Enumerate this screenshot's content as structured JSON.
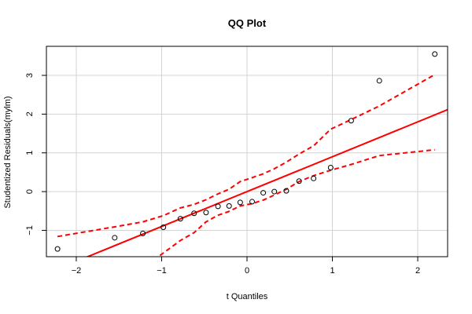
{
  "chart_data": {
    "type": "scatter",
    "title": "QQ Plot",
    "xlabel": "t Quantiles",
    "ylabel": "Studentized Residuals(mylm)",
    "xlim": [
      -2.35,
      2.35
    ],
    "ylim": [
      -1.68,
      3.75
    ],
    "grid": true,
    "x_ticks": [
      -2,
      -1,
      0,
      1,
      2
    ],
    "y_ticks": [
      -1,
      0,
      1,
      2,
      3
    ],
    "colors": {
      "points": "#000000",
      "reference_line": "#ff0000",
      "envelope": "#ff0000",
      "grid": "#d3d3d3",
      "frame": "#000000"
    },
    "points": [
      {
        "x": -2.22,
        "y": -1.48
      },
      {
        "x": -1.55,
        "y": -1.19
      },
      {
        "x": -1.22,
        "y": -1.08
      },
      {
        "x": -0.98,
        "y": -0.92
      },
      {
        "x": -0.78,
        "y": -0.7
      },
      {
        "x": -0.62,
        "y": -0.56
      },
      {
        "x": -0.48,
        "y": -0.54
      },
      {
        "x": -0.34,
        "y": -0.38
      },
      {
        "x": -0.21,
        "y": -0.37
      },
      {
        "x": -0.08,
        "y": -0.28
      },
      {
        "x": 0.06,
        "y": -0.26
      },
      {
        "x": 0.19,
        "y": -0.03
      },
      {
        "x": 0.32,
        "y": 0.0
      },
      {
        "x": 0.46,
        "y": 0.02
      },
      {
        "x": 0.61,
        "y": 0.27
      },
      {
        "x": 0.78,
        "y": 0.34
      },
      {
        "x": 0.98,
        "y": 0.62
      },
      {
        "x": 1.22,
        "y": 1.83
      },
      {
        "x": 1.55,
        "y": 2.86
      },
      {
        "x": 2.2,
        "y": 3.55
      }
    ],
    "reference_line": {
      "intercept": 0.0,
      "slope": 0.9
    },
    "upper_envelope": [
      {
        "x": -2.22,
        "y": -1.16
      },
      {
        "x": -1.55,
        "y": -0.91
      },
      {
        "x": -1.22,
        "y": -0.78
      },
      {
        "x": -0.98,
        "y": -0.62
      },
      {
        "x": -0.78,
        "y": -0.42
      },
      {
        "x": -0.62,
        "y": -0.33
      },
      {
        "x": -0.48,
        "y": -0.21
      },
      {
        "x": -0.34,
        "y": -0.06
      },
      {
        "x": -0.21,
        "y": 0.06
      },
      {
        "x": -0.08,
        "y": 0.26
      },
      {
        "x": 0.06,
        "y": 0.36
      },
      {
        "x": 0.19,
        "y": 0.46
      },
      {
        "x": 0.32,
        "y": 0.59
      },
      {
        "x": 0.46,
        "y": 0.76
      },
      {
        "x": 0.61,
        "y": 0.97
      },
      {
        "x": 0.78,
        "y": 1.18
      },
      {
        "x": 0.98,
        "y": 1.61
      },
      {
        "x": 1.22,
        "y": 1.86
      },
      {
        "x": 1.55,
        "y": 2.21
      },
      {
        "x": 2.2,
        "y": 3.02
      }
    ],
    "lower_envelope": [
      {
        "x": -1.02,
        "y": -1.65
      },
      {
        "x": -0.78,
        "y": -1.26
      },
      {
        "x": -0.62,
        "y": -1.06
      },
      {
        "x": -0.48,
        "y": -0.78
      },
      {
        "x": -0.34,
        "y": -0.61
      },
      {
        "x": -0.21,
        "y": -0.51
      },
      {
        "x": -0.08,
        "y": -0.37
      },
      {
        "x": 0.06,
        "y": -0.31
      },
      {
        "x": 0.19,
        "y": -0.22
      },
      {
        "x": 0.32,
        "y": -0.09
      },
      {
        "x": 0.46,
        "y": 0.06
      },
      {
        "x": 0.61,
        "y": 0.26
      },
      {
        "x": 0.78,
        "y": 0.41
      },
      {
        "x": 0.98,
        "y": 0.55
      },
      {
        "x": 1.22,
        "y": 0.7
      },
      {
        "x": 1.55,
        "y": 0.93
      },
      {
        "x": 2.2,
        "y": 1.08
      }
    ]
  }
}
